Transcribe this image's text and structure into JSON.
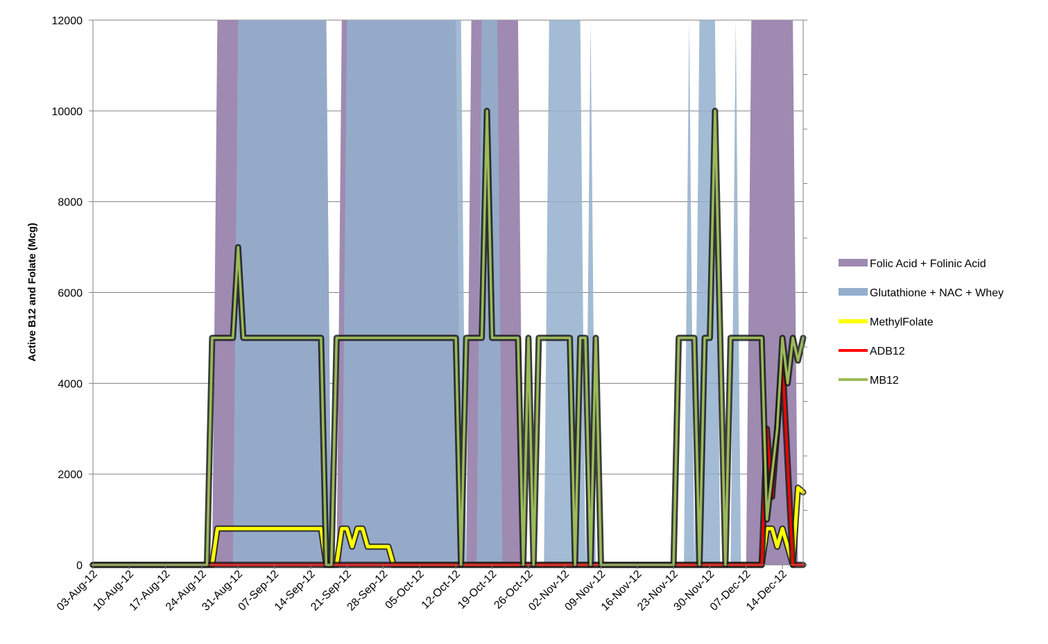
{
  "chart_data": {
    "type": "line",
    "title": "",
    "xlabel": "",
    "ylabel": "Active B12 and Folate (Mcg)",
    "ylim": [
      0,
      12000
    ],
    "yticks": [
      0,
      2000,
      4000,
      6000,
      8000,
      10000,
      12000
    ],
    "xlim": [
      "2012-08-03",
      "2012-12-18"
    ],
    "xticks": [
      "03-Aug-12",
      "10-Aug-12",
      "17-Aug-12",
      "24-Aug-12",
      "31-Aug-12",
      "07-Sep-12",
      "14-Sep-12",
      "21-Sep-12",
      "28-Sep-12",
      "05-Oct-12",
      "12-Oct-12",
      "19-Oct-12",
      "26-Oct-12",
      "02-Nov-12",
      "09-Nov-12",
      "16-Nov-12",
      "23-Nov-12",
      "30-Nov-12",
      "07-Dec-12",
      "14-Dec-12"
    ],
    "grid": "horizontal",
    "legend_position": "right",
    "series": [
      {
        "name": "Folic Acid + Folinic Acid",
        "kind": "area",
        "color": "#9f8ab1",
        "points": [
          [
            "2012-08-03",
            0
          ],
          [
            "2012-08-26",
            0
          ],
          [
            "2012-08-27",
            12000
          ],
          [
            "2012-09-17",
            12000
          ],
          [
            "2012-09-18",
            0
          ],
          [
            "2012-09-19",
            0
          ],
          [
            "2012-09-20",
            12000
          ],
          [
            "2012-10-12",
            12000
          ],
          [
            "2012-10-13",
            0
          ],
          [
            "2012-10-14",
            0
          ],
          [
            "2012-10-15",
            12000
          ],
          [
            "2012-10-24",
            12000
          ],
          [
            "2012-10-25",
            0
          ],
          [
            "2012-12-07",
            0
          ],
          [
            "2012-12-08",
            12000
          ],
          [
            "2012-12-16",
            12000
          ],
          [
            "2012-12-17",
            0
          ],
          [
            "2012-12-18",
            0
          ]
        ]
      },
      {
        "name": "Glutathione + NAC + Whey",
        "kind": "area",
        "color": "#93afcd",
        "points": [
          [
            "2012-08-03",
            0
          ],
          [
            "2012-08-30",
            0
          ],
          [
            "2012-08-31",
            12000
          ],
          [
            "2012-09-17",
            12000
          ],
          [
            "2012-09-18",
            0
          ],
          [
            "2012-09-20",
            0
          ],
          [
            "2012-09-21",
            12000
          ],
          [
            "2012-10-13",
            12000
          ],
          [
            "2012-10-14",
            0
          ],
          [
            "2012-10-16",
            0
          ],
          [
            "2012-10-17",
            12000
          ],
          [
            "2012-10-20",
            12000
          ],
          [
            "2012-10-21",
            0
          ],
          [
            "2012-10-29",
            0
          ],
          [
            "2012-10-30",
            12000
          ],
          [
            "2012-11-05",
            12000
          ],
          [
            "2012-11-06",
            0
          ],
          [
            "2012-11-07",
            12000
          ],
          [
            "2012-11-08",
            0
          ],
          [
            "2012-11-25",
            0
          ],
          [
            "2012-11-26",
            12000
          ],
          [
            "2012-11-27",
            0
          ],
          [
            "2012-11-28",
            12000
          ],
          [
            "2012-12-01",
            12000
          ],
          [
            "2012-12-02",
            0
          ],
          [
            "2012-12-04",
            0
          ],
          [
            "2012-12-05",
            12000
          ],
          [
            "2012-12-06",
            0
          ],
          [
            "2012-12-18",
            0
          ]
        ]
      },
      {
        "name": "MethylFolate",
        "kind": "line",
        "color": "#ffff00",
        "points": [
          [
            "2012-08-03",
            0
          ],
          [
            "2012-08-26",
            0
          ],
          [
            "2012-08-27",
            800
          ],
          [
            "2012-09-16",
            800
          ],
          [
            "2012-09-17",
            0
          ],
          [
            "2012-09-19",
            0
          ],
          [
            "2012-09-20",
            800
          ],
          [
            "2012-09-21",
            800
          ],
          [
            "2012-09-22",
            400
          ],
          [
            "2012-09-23",
            800
          ],
          [
            "2012-09-24",
            800
          ],
          [
            "2012-09-25",
            400
          ],
          [
            "2012-09-29",
            400
          ],
          [
            "2012-09-30",
            0
          ],
          [
            "2012-12-10",
            0
          ],
          [
            "2012-12-11",
            800
          ],
          [
            "2012-12-12",
            800
          ],
          [
            "2012-12-13",
            400
          ],
          [
            "2012-12-14",
            800
          ],
          [
            "2012-12-15",
            400
          ],
          [
            "2012-12-16",
            0
          ],
          [
            "2012-12-17",
            1700
          ],
          [
            "2012-12-18",
            1600
          ]
        ]
      },
      {
        "name": "ADB12",
        "kind": "line",
        "color": "#ff0000",
        "points": [
          [
            "2012-08-03",
            0
          ],
          [
            "2012-12-10",
            0
          ],
          [
            "2012-12-11",
            3000
          ],
          [
            "2012-12-12",
            1500
          ],
          [
            "2012-12-14",
            4500
          ],
          [
            "2012-12-16",
            0
          ],
          [
            "2012-12-18",
            0
          ]
        ]
      },
      {
        "name": "MB12",
        "kind": "line",
        "color": "#9bbb59",
        "points": [
          [
            "2012-08-03",
            0
          ],
          [
            "2012-08-25",
            0
          ],
          [
            "2012-08-26",
            5000
          ],
          [
            "2012-08-30",
            5000
          ],
          [
            "2012-08-31",
            7000
          ],
          [
            "2012-09-01",
            5000
          ],
          [
            "2012-09-16",
            5000
          ],
          [
            "2012-09-17",
            0
          ],
          [
            "2012-09-18",
            0
          ],
          [
            "2012-09-19",
            5000
          ],
          [
            "2012-10-12",
            5000
          ],
          [
            "2012-10-13",
            0
          ],
          [
            "2012-10-14",
            5000
          ],
          [
            "2012-10-17",
            5000
          ],
          [
            "2012-10-18",
            10000
          ],
          [
            "2012-10-19",
            5000
          ],
          [
            "2012-10-24",
            5000
          ],
          [
            "2012-10-25",
            0
          ],
          [
            "2012-10-26",
            5000
          ],
          [
            "2012-10-27",
            0
          ],
          [
            "2012-10-28",
            5000
          ],
          [
            "2012-11-03",
            5000
          ],
          [
            "2012-11-04",
            0
          ],
          [
            "2012-11-05",
            5000
          ],
          [
            "2012-11-06",
            5000
          ],
          [
            "2012-11-07",
            0
          ],
          [
            "2012-11-08",
            5000
          ],
          [
            "2012-11-09",
            0
          ],
          [
            "2012-11-23",
            0
          ],
          [
            "2012-11-24",
            5000
          ],
          [
            "2012-11-27",
            5000
          ],
          [
            "2012-11-28",
            0
          ],
          [
            "2012-11-29",
            5000
          ],
          [
            "2012-11-30",
            5000
          ],
          [
            "2012-12-01",
            10000
          ],
          [
            "2012-12-02",
            5000
          ],
          [
            "2012-12-03",
            0
          ],
          [
            "2012-12-04",
            5000
          ],
          [
            "2012-12-10",
            5000
          ],
          [
            "2012-12-11",
            1000
          ],
          [
            "2012-12-13",
            3000
          ],
          [
            "2012-12-14",
            5000
          ],
          [
            "2012-12-15",
            4000
          ],
          [
            "2012-12-16",
            5000
          ],
          [
            "2012-12-17",
            4500
          ],
          [
            "2012-12-18",
            5000
          ]
        ]
      }
    ]
  }
}
